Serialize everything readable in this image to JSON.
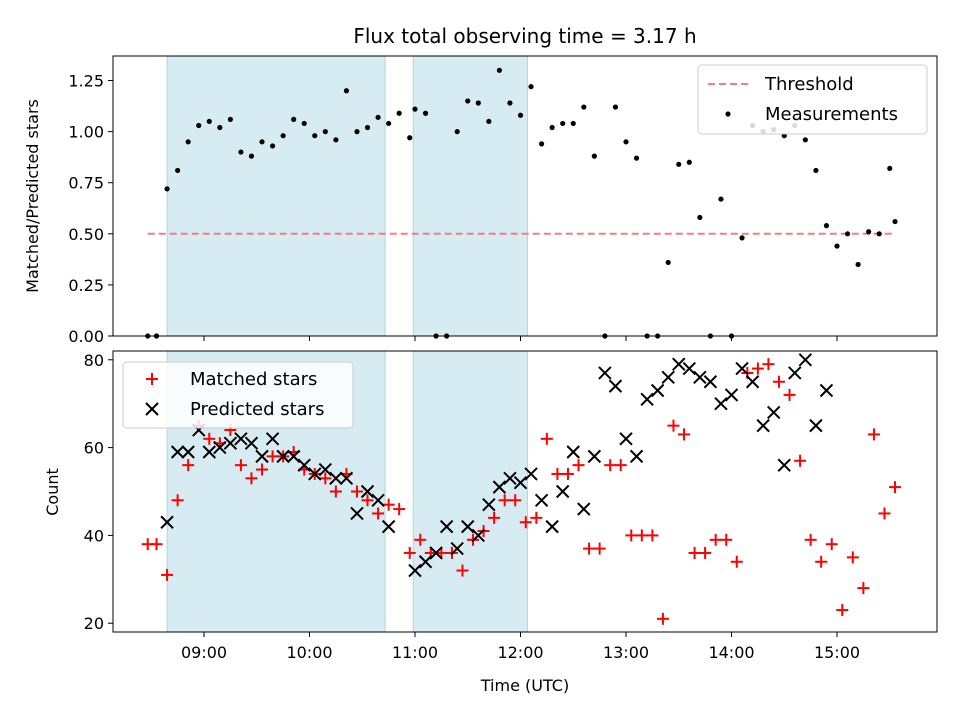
{
  "chart_data": [
    {
      "type": "scatter",
      "title": "Flux total observing time = 3.17 h",
      "xlabel": "",
      "ylabel": "Matched/Predicted stars",
      "ylim": [
        0,
        1.37
      ],
      "yticks": [
        "0.00",
        "0.25",
        "0.50",
        "0.75",
        "1.00",
        "1.25"
      ],
      "xticks": [
        "09:00",
        "10:00",
        "11:00",
        "12:00",
        "13:00",
        "14:00",
        "15:00"
      ],
      "xlim": [
        "08:17",
        "16:07"
      ],
      "grid": false,
      "legend_placement": "top-right",
      "shaded_intervals": [
        [
          "08:39",
          "10:43"
        ],
        [
          "10:59",
          "12:04"
        ]
      ],
      "threshold": {
        "name": "Threshold",
        "value": 0.5,
        "x_range": [
          "08:28",
          "15:33"
        ],
        "color": "#f08080"
      },
      "series": [
        {
          "name": "Measurements",
          "color": "#000000",
          "x": [
            "08:28",
            "08:33",
            "08:39",
            "08:45",
            "08:51",
            "08:57",
            "09:03",
            "09:09",
            "09:15",
            "09:21",
            "09:27",
            "09:33",
            "09:39",
            "09:45",
            "09:51",
            "09:57",
            "10:03",
            "10:09",
            "10:15",
            "10:21",
            "10:27",
            "10:33",
            "10:39",
            "10:45",
            "10:51",
            "10:57",
            "11:00",
            "11:06",
            "11:12",
            "11:18",
            "11:24",
            "11:30",
            "11:36",
            "11:42",
            "11:48",
            "11:54",
            "12:00",
            "12:06",
            "12:12",
            "12:18",
            "12:24",
            "12:30",
            "12:36",
            "12:42",
            "12:48",
            "12:54",
            "13:00",
            "13:06",
            "13:12",
            "13:18",
            "13:24",
            "13:30",
            "13:36",
            "13:42",
            "13:48",
            "13:54",
            "14:00",
            "14:06",
            "14:12",
            "14:18",
            "14:24",
            "14:30",
            "14:36",
            "14:42",
            "14:48",
            "14:54",
            "15:00",
            "15:06",
            "15:12",
            "15:18",
            "15:24",
            "15:30",
            "15:33"
          ],
          "y": [
            0,
            0,
            0.72,
            0.81,
            0.95,
            1.03,
            1.05,
            1.02,
            1.06,
            0.9,
            0.88,
            0.95,
            0.93,
            0.98,
            1.06,
            1.04,
            0.98,
            1.0,
            0.96,
            1.2,
            1.0,
            1.02,
            1.07,
            1.04,
            1.09,
            0.97,
            1.11,
            1.09,
            0,
            0,
            1.0,
            1.15,
            1.14,
            1.05,
            1.3,
            1.14,
            1.08,
            1.22,
            0.94,
            1.02,
            1.04,
            1.04,
            1.12,
            0.88,
            0,
            1.12,
            0.95,
            0.87,
            0,
            0,
            0.36,
            0.84,
            0.85,
            0.58,
            0,
            0.67,
            0,
            0.48,
            1.03,
            1.0,
            1.01,
            0.98,
            1.03,
            0.96,
            0.81,
            0.54,
            0.44,
            0.5,
            0.35,
            0.51,
            0.5,
            0.82,
            0.56
          ]
        }
      ]
    },
    {
      "type": "scatter",
      "title": "",
      "xlabel": "Time (UTC)",
      "ylabel": "Count",
      "ylim": [
        18,
        82
      ],
      "yticks": [
        "20",
        "40",
        "60",
        "80"
      ],
      "xticks": [
        "09:00",
        "10:00",
        "11:00",
        "12:00",
        "13:00",
        "14:00",
        "15:00"
      ],
      "xlim": [
        "08:17",
        "16:07"
      ],
      "grid": false,
      "legend_placement": "top-left",
      "shaded_intervals": [
        [
          "08:39",
          "10:43"
        ],
        [
          "10:59",
          "12:04"
        ]
      ],
      "series": [
        {
          "name": "Matched stars",
          "marker": "+",
          "color": "#ff0000",
          "x": [
            "08:28",
            "08:33",
            "08:39",
            "08:45",
            "08:51",
            "08:57",
            "09:03",
            "09:09",
            "09:15",
            "09:21",
            "09:27",
            "09:33",
            "09:39",
            "09:45",
            "09:51",
            "09:57",
            "10:03",
            "10:09",
            "10:15",
            "10:21",
            "10:27",
            "10:33",
            "10:39",
            "10:45",
            "10:51",
            "10:57",
            "11:03",
            "11:09",
            "11:15",
            "11:21",
            "11:27",
            "11:33",
            "11:39",
            "11:45",
            "11:51",
            "11:57",
            "12:03",
            "12:09",
            "12:15",
            "12:21",
            "12:27",
            "12:33",
            "12:39",
            "12:45",
            "12:51",
            "12:57",
            "13:03",
            "13:09",
            "13:15",
            "13:21",
            "13:27",
            "13:33",
            "13:39",
            "13:45",
            "13:51",
            "13:57",
            "14:03",
            "14:09",
            "14:15",
            "14:21",
            "14:27",
            "14:33",
            "14:39",
            "14:45",
            "14:51",
            "14:57",
            "15:03",
            "15:09",
            "15:15",
            "15:21",
            "15:27",
            "15:33"
          ],
          "y": [
            38,
            38,
            31,
            48,
            56,
            65,
            62,
            61,
            64,
            56,
            53,
            55,
            58,
            58,
            59,
            55,
            54,
            53,
            50,
            54,
            50,
            48,
            45,
            47,
            46,
            36,
            39,
            36,
            36,
            36,
            32,
            39,
            41,
            44,
            48,
            48,
            43,
            44,
            62,
            54,
            54,
            56,
            37,
            37,
            56,
            56,
            40,
            40,
            40,
            21,
            65,
            63,
            36,
            36,
            39,
            39,
            34,
            77,
            78,
            79,
            75,
            72,
            57,
            39,
            34,
            38,
            23,
            35,
            28,
            63,
            45,
            51
          ]
        },
        {
          "name": "Predicted stars",
          "marker": "x",
          "color": "#000000",
          "x": [
            "08:39",
            "08:45",
            "08:51",
            "08:57",
            "09:03",
            "09:09",
            "09:15",
            "09:21",
            "09:27",
            "09:33",
            "09:39",
            "09:45",
            "09:51",
            "09:57",
            "10:03",
            "10:09",
            "10:15",
            "10:21",
            "10:27",
            "10:33",
            "10:39",
            "10:45",
            "11:00",
            "11:06",
            "11:12",
            "11:18",
            "11:24",
            "11:30",
            "11:36",
            "11:42",
            "11:48",
            "11:54",
            "12:00",
            "12:06",
            "12:12",
            "12:18",
            "12:24",
            "12:30",
            "12:36",
            "12:42",
            "12:48",
            "12:54",
            "13:00",
            "13:06",
            "13:12",
            "13:18",
            "13:24",
            "13:30",
            "13:36",
            "13:42",
            "13:48",
            "13:54",
            "14:00",
            "14:06",
            "14:12",
            "14:18",
            "14:24",
            "14:30",
            "14:36",
            "14:42",
            "14:48",
            "14:54"
          ],
          "y": [
            43,
            59,
            59,
            64,
            59,
            60,
            61,
            62,
            61,
            58,
            62,
            58,
            58,
            56,
            54,
            55,
            53,
            53,
            45,
            50,
            48,
            42,
            32,
            34,
            36,
            42,
            37,
            42,
            40,
            47,
            51,
            53,
            52,
            54,
            48,
            42,
            50,
            59,
            46,
            58,
            77,
            74,
            62,
            58,
            71,
            73,
            76,
            79,
            78,
            76,
            75,
            70,
            72,
            78,
            75,
            65,
            68,
            56,
            77,
            80,
            65,
            73
          ]
        }
      ]
    }
  ]
}
